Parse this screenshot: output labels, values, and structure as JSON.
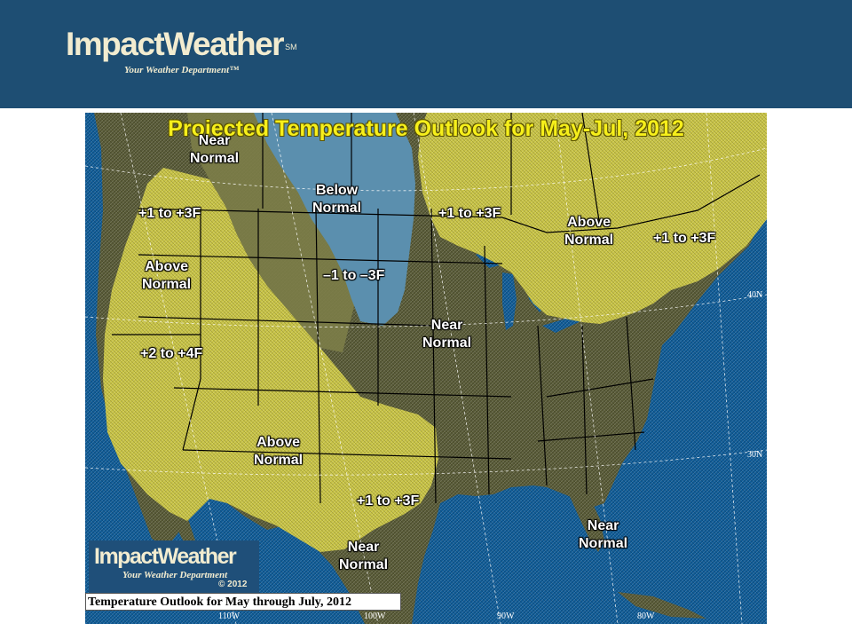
{
  "header": {
    "logo_text": "ImpactWeather",
    "logo_sm": "SM",
    "tagline": "Your Weather Department™"
  },
  "map": {
    "title": "Projected Temperature Outlook for May-Jul, 2012",
    "caption": "Temperature Outlook for May through July, 2012",
    "corner_logo": {
      "text": "ImpactWeather",
      "tagline": "Your Weather Department",
      "copyright": "© 2012"
    },
    "regions": [
      {
        "id": "nw-near-normal",
        "category": "Near",
        "label": "Normal"
      },
      {
        "id": "nw-plus1-3",
        "category": "+1 to +3F"
      },
      {
        "id": "nw-above-normal",
        "category": "Above",
        "label": "Normal"
      },
      {
        "id": "west-plus2-4",
        "category": "+2 to +4F"
      },
      {
        "id": "north-below-normal",
        "category": "Below",
        "label": "Normal"
      },
      {
        "id": "north-minus1-3",
        "category": "–1 to –3F"
      },
      {
        "id": "canada-plus1-3",
        "category": "+1 to +3F"
      },
      {
        "id": "ne-above-normal",
        "category": "Above",
        "label": "Normal"
      },
      {
        "id": "ne-plus1-3",
        "category": "+1 to +3F"
      },
      {
        "id": "central-near-normal",
        "category": "Near",
        "label": "Normal"
      },
      {
        "id": "sw-above-normal",
        "category": "Above",
        "label": "Normal"
      },
      {
        "id": "sw-plus1-3",
        "category": "+1 to +3F"
      },
      {
        "id": "mexico-near-normal",
        "category": "Near",
        "label": "Normal"
      },
      {
        "id": "gulf-near-normal",
        "category": "Near",
        "label": "Normal"
      }
    ],
    "latitude_labels": [
      "40N",
      "30N"
    ],
    "longitude_labels": [
      "110W",
      "100W",
      "90W",
      "80W"
    ],
    "colors": {
      "above": "#c9c445",
      "below": "#5b8fae",
      "near": "#585a36",
      "ocean": "#0f5b97",
      "title": "#f6ef1b",
      "header": "#1e4e73"
    }
  }
}
